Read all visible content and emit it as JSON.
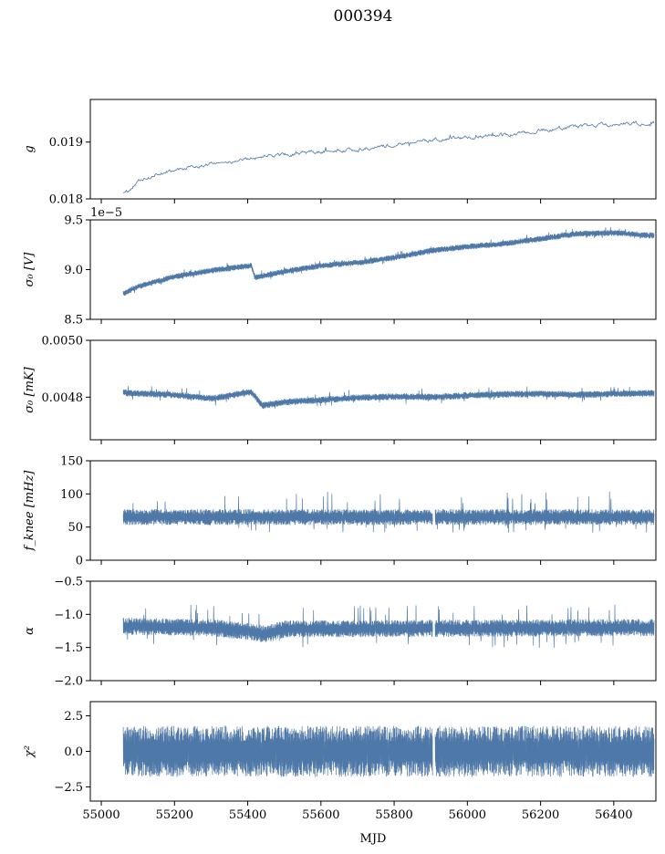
{
  "figure": {
    "title": "000394",
    "xlabel": "MJD",
    "xlim": [
      54970,
      56515
    ],
    "xticks": [
      55000,
      55200,
      55400,
      55600,
      55800,
      56000,
      56200,
      56400
    ],
    "line_color": "#4e78a7",
    "background": "#ffffff"
  },
  "chart_data": [
    {
      "type": "line",
      "ylabel": "g",
      "ylim": [
        0.018,
        0.01975
      ],
      "yticks": [
        {
          "v": 0.018,
          "label": "0.018"
        },
        {
          "v": 0.019,
          "label": "0.019"
        }
      ],
      "offset_text": "",
      "series": [
        {
          "style": "thin",
          "x_range": [
            55060,
            56510
          ],
          "gap": null,
          "trend_x": [
            55060,
            55080,
            55100,
            55150,
            55200,
            55250,
            55300,
            55400,
            55500,
            55600,
            55700,
            55800,
            55900,
            56000,
            56100,
            56200,
            56300,
            56400,
            56510
          ],
          "trend_y": [
            0.01808,
            0.01818,
            0.01832,
            0.01843,
            0.0185,
            0.01856,
            0.01862,
            0.0187,
            0.01878,
            0.01884,
            0.01888,
            0.01895,
            0.01903,
            0.01908,
            0.01913,
            0.0192,
            0.01928,
            0.01932,
            0.01933
          ],
          "noise_amp": 5e-05,
          "spike_up": 5e-05,
          "spike_down": 4e-05
        }
      ]
    },
    {
      "type": "line",
      "ylabel": "σ₀ [V]",
      "ylim": [
        8.5e-05,
        9.5e-05
      ],
      "yticks": [
        {
          "v": 8.5e-05,
          "label": "8.5"
        },
        {
          "v": 9e-05,
          "label": "9.0"
        },
        {
          "v": 9.5e-05,
          "label": "9.5"
        }
      ],
      "offset_text": "1e−5",
      "series": [
        {
          "style": "dense",
          "x_range": [
            55060,
            56510
          ],
          "gap": null,
          "trend_x": [
            55060,
            55100,
            55200,
            55300,
            55410,
            55420,
            55500,
            55600,
            55700,
            55800,
            55900,
            56000,
            56100,
            56200,
            56300,
            56400,
            56510
          ],
          "trend_y": [
            8.76e-05,
            8.83e-05,
            8.93e-05,
            8.99e-05,
            9.04e-05,
            8.92e-05,
            8.98e-05,
            9.04e-05,
            9.07e-05,
            9.12e-05,
            9.19e-05,
            9.23e-05,
            9.26e-05,
            9.31e-05,
            9.36e-05,
            9.37e-05,
            9.34e-05
          ],
          "noise_amp": 3e-07,
          "spike_up": 6e-07,
          "spike_down": 5e-07
        }
      ]
    },
    {
      "type": "line",
      "ylabel": "σ₀ [mK]",
      "ylim": [
        0.00465,
        0.005
      ],
      "yticks": [
        {
          "v": 0.0048,
          "label": "0.0048"
        },
        {
          "v": 0.005,
          "label": "0.0050"
        }
      ],
      "offset_text": "",
      "series": [
        {
          "style": "dense",
          "x_range": [
            55060,
            56510
          ],
          "gap": null,
          "trend_x": [
            55060,
            55200,
            55300,
            55410,
            55440,
            55500,
            55600,
            55700,
            55800,
            55900,
            56000,
            56100,
            56200,
            56300,
            56400,
            56510
          ],
          "trend_y": [
            0.004815,
            0.004808,
            0.004795,
            0.004818,
            0.00477,
            0.004783,
            0.00479,
            0.004798,
            0.004802,
            0.0048,
            0.004806,
            0.00481,
            0.004812,
            0.004808,
            0.004812,
            0.004814
          ],
          "noise_amp": 1.2e-05,
          "spike_up": 3e-05,
          "spike_down": 2.8e-05
        }
      ]
    },
    {
      "type": "line",
      "ylabel": "f_knee [mHz]",
      "ylim": [
        0,
        150
      ],
      "yticks": [
        {
          "v": 0,
          "label": "0"
        },
        {
          "v": 50,
          "label": "50"
        },
        {
          "v": 100,
          "label": "100"
        },
        {
          "v": 150,
          "label": "150"
        }
      ],
      "offset_text": "",
      "series": [
        {
          "style": "dense",
          "x_range": [
            55060,
            56510
          ],
          "gap": [
            55905,
            55912
          ],
          "trend_x": [
            55060,
            56510
          ],
          "trend_y": [
            65,
            65
          ],
          "noise_amp": 12,
          "spike_up": 40,
          "spike_down": 25
        }
      ]
    },
    {
      "type": "line",
      "ylabel": "α",
      "ylim": [
        -2.0,
        -0.5
      ],
      "yticks": [
        {
          "v": -2.0,
          "label": "−2.0"
        },
        {
          "v": -1.5,
          "label": "−1.5"
        },
        {
          "v": -1.0,
          "label": "−1.0"
        },
        {
          "v": -0.5,
          "label": "−0.5"
        }
      ],
      "offset_text": "",
      "series": [
        {
          "style": "dense",
          "x_range": [
            55060,
            56510
          ],
          "gap": [
            55905,
            55912
          ],
          "trend_x": [
            55060,
            55300,
            55400,
            55450,
            55500,
            56510
          ],
          "trend_y": [
            -1.18,
            -1.2,
            -1.26,
            -1.3,
            -1.22,
            -1.2
          ],
          "noise_amp": 0.13,
          "spike_up": 0.35,
          "spike_down": 0.3
        }
      ]
    },
    {
      "type": "line",
      "ylabel": "χ²",
      "ylim": [
        -3.5,
        3.5
      ],
      "yticks": [
        {
          "v": -2.5,
          "label": "−2.5"
        },
        {
          "v": 0.0,
          "label": "0.0"
        },
        {
          "v": 2.5,
          "label": "2.5"
        }
      ],
      "offset_text": "",
      "series": [
        {
          "style": "dense",
          "x_range": [
            55060,
            56510
          ],
          "gap": [
            55905,
            55912
          ],
          "trend_x": [
            55060,
            56510
          ],
          "trend_y": [
            0.0,
            0.0
          ],
          "noise_amp": 1.8,
          "spike_up": 1.2,
          "spike_down": 1.5
        }
      ]
    }
  ]
}
